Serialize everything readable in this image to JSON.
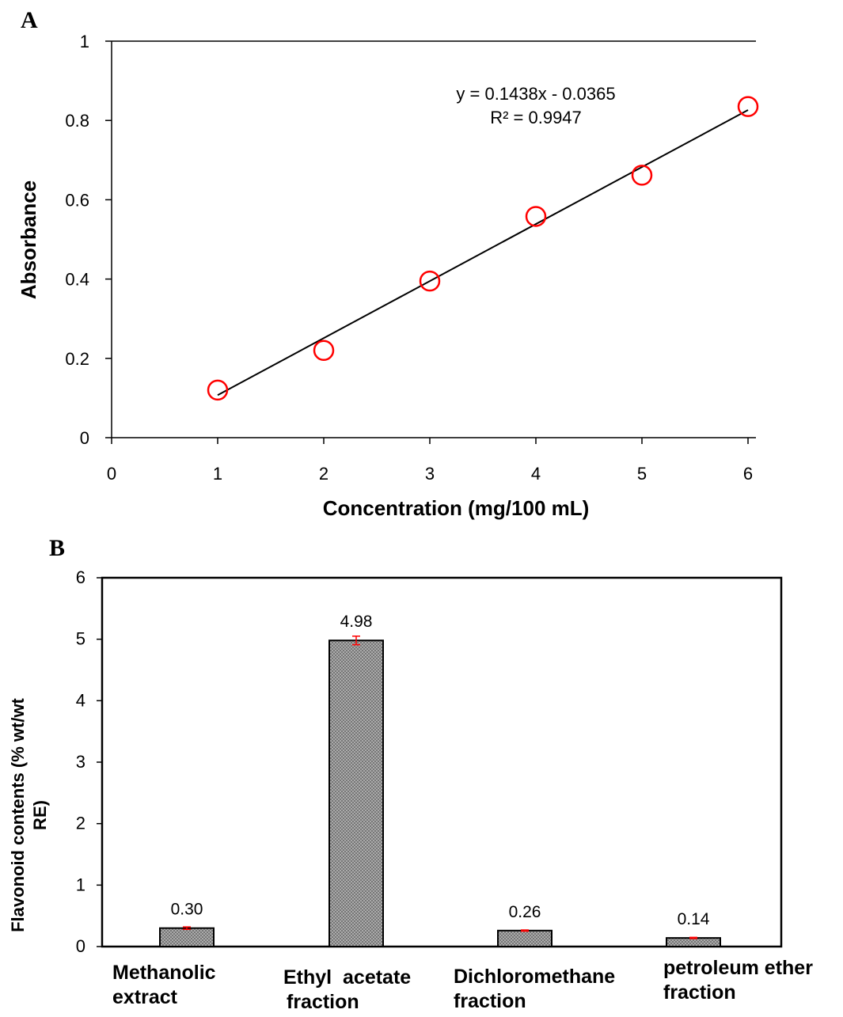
{
  "panels": {
    "a": "A",
    "b": "B"
  },
  "chart_data": [
    {
      "type": "scatter",
      "title": "",
      "xlabel": "Concentration (mg/100 mL)",
      "ylabel": "Absorbance",
      "xlim": [
        0,
        6
      ],
      "ylim": [
        0,
        1
      ],
      "xticks": [
        "0",
        "1",
        "2",
        "3",
        "4",
        "5",
        "6"
      ],
      "yticks": [
        "0",
        "0.2",
        "0.4",
        "0.6",
        "0.8",
        "1"
      ],
      "series": [
        {
          "x": [
            1,
            2,
            3,
            4,
            5,
            6
          ],
          "y": [
            0.12,
            0.22,
            0.395,
            0.558,
            0.662,
            0.835
          ]
        }
      ],
      "trendline": {
        "slope": 0.1438,
        "intercept": -0.0365,
        "x_range": [
          1,
          6
        ]
      },
      "annotations": [
        "y = 0.1438x - 0.0365",
        "R² = 0.9947"
      ],
      "grid": false,
      "colors": {
        "marker": "#ff0000",
        "line": "#000000"
      }
    },
    {
      "type": "bar",
      "title": "",
      "ylabel_lines": [
        "Flavonoid contents (% wt/wt",
        "RE)"
      ],
      "categories": [
        [
          "Methanolic",
          "extract"
        ],
        [
          "Ethyl  acetate",
          "fraction"
        ],
        [
          "Dichloromethane",
          "fraction"
        ],
        [
          "petroleum ether",
          "fraction"
        ]
      ],
      "values": [
        0.3,
        4.98,
        0.26,
        0.14
      ],
      "value_labels": [
        "0.30",
        "4.98",
        "0.26",
        "0.14"
      ],
      "errors": [
        0.02,
        0.07,
        0.01,
        0.01
      ],
      "ylim": [
        0,
        6
      ],
      "yticks": [
        "0",
        "1",
        "2",
        "3",
        "4",
        "5",
        "6"
      ],
      "grid": false,
      "colors": {
        "bar_fill": "#b4b4b4",
        "bar_edge": "#000000",
        "error_bar": "#ff0000"
      }
    }
  ]
}
